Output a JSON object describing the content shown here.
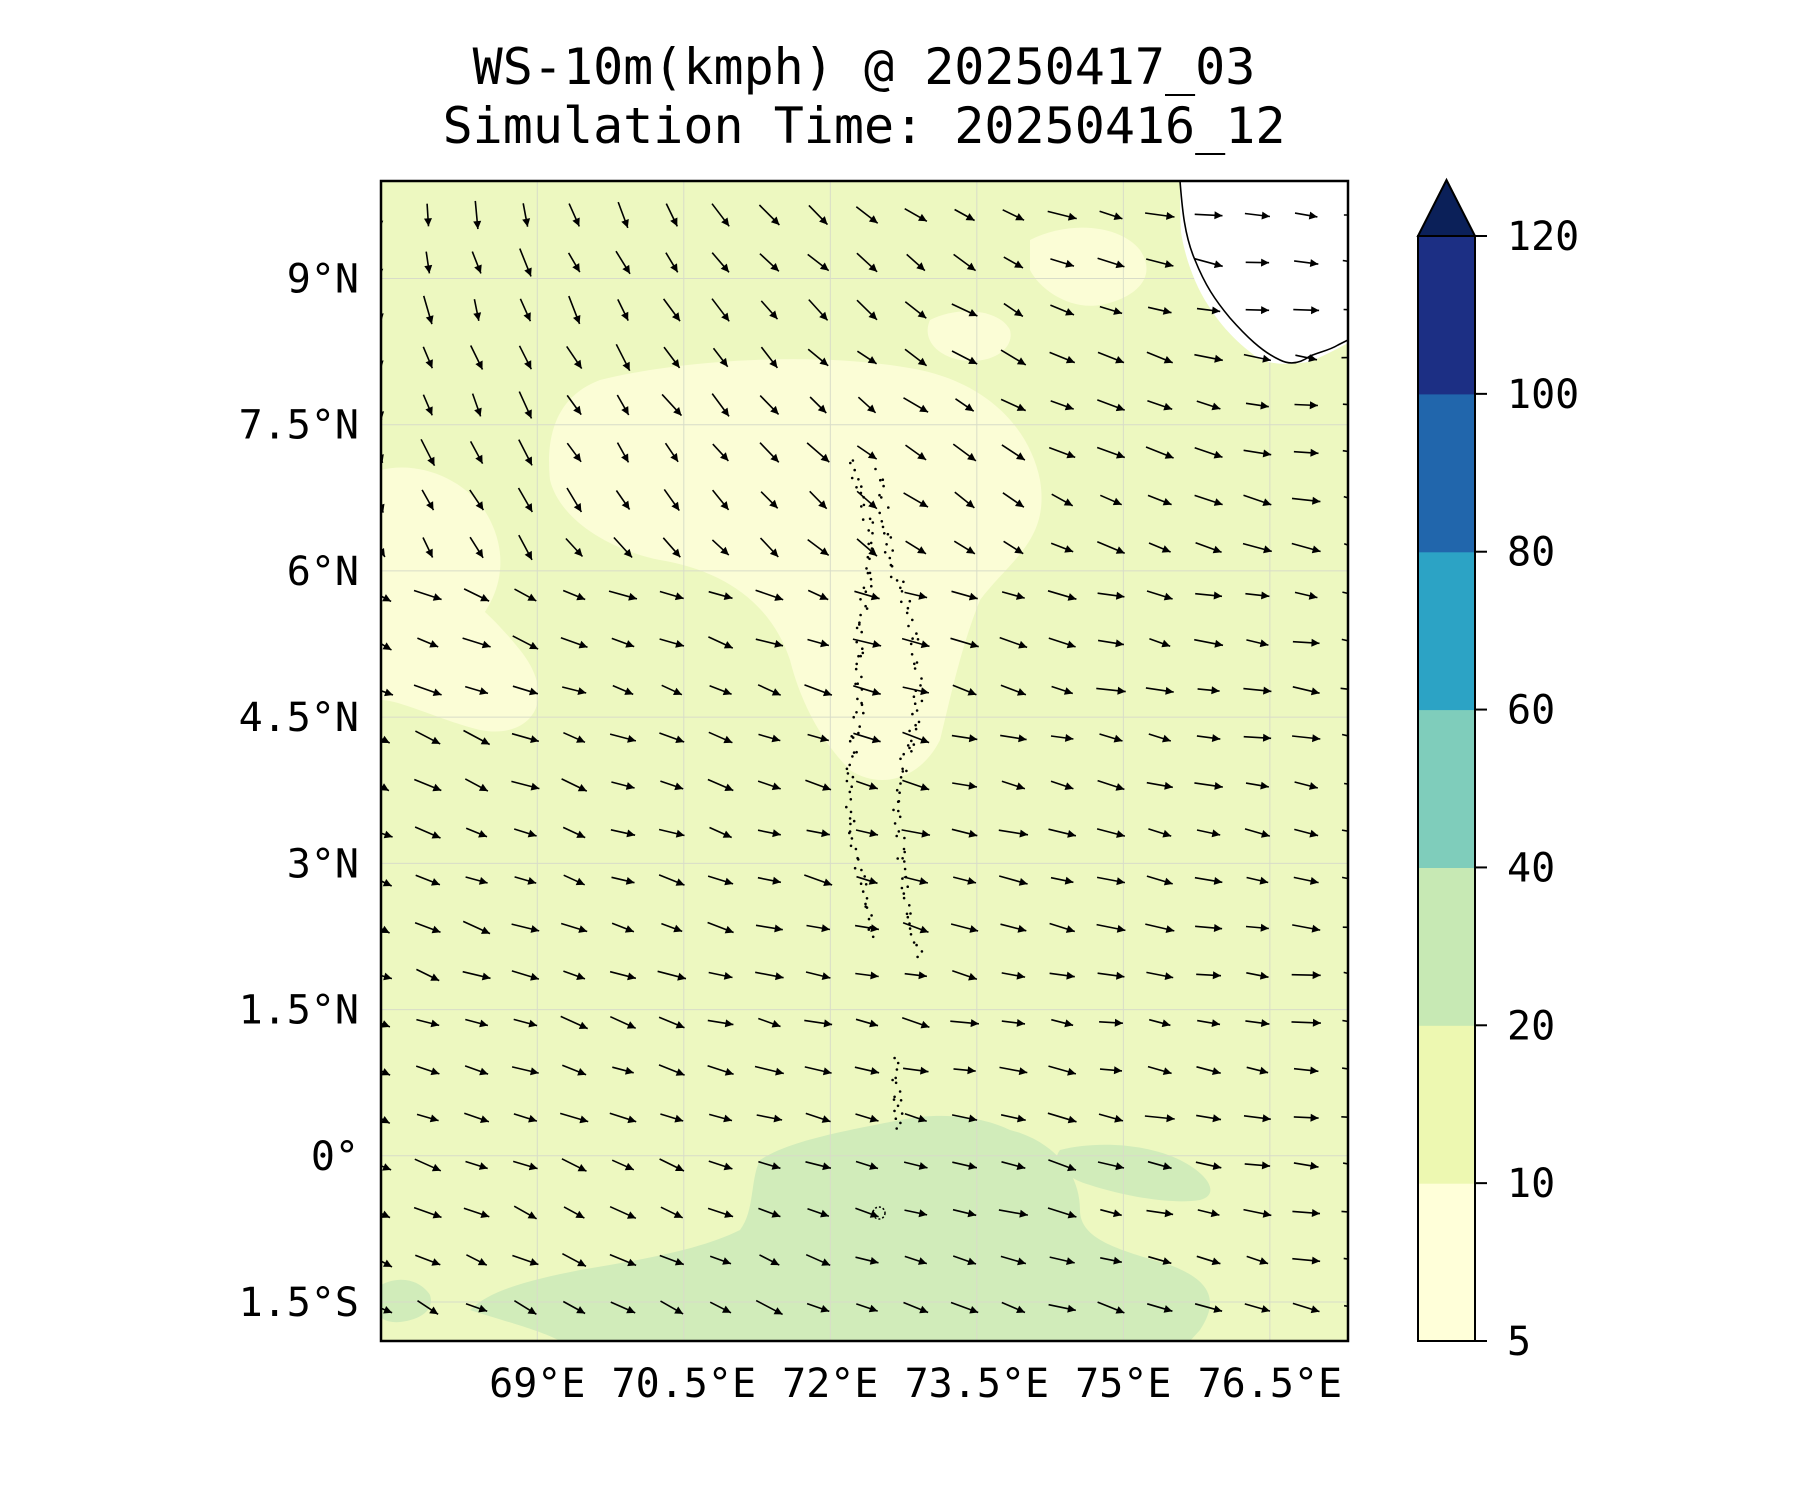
{
  "title": {
    "line1": "WS-10m(kmph) @ 20250417_03",
    "line2": "Simulation Time: 20250416_12"
  },
  "map": {
    "variable": "10 m wind speed",
    "units": "kmph",
    "lon_range": [
      67.4,
      77.3
    ],
    "lat_range": [
      -1.9,
      10.0
    ],
    "x_ticks": [
      {
        "value": 69.0,
        "label": "69°E"
      },
      {
        "value": 70.5,
        "label": "70.5°E"
      },
      {
        "value": 72.0,
        "label": "72°E"
      },
      {
        "value": 73.5,
        "label": "73.5°E"
      },
      {
        "value": 75.0,
        "label": "75°E"
      },
      {
        "value": 76.5,
        "label": "76.5°E"
      }
    ],
    "y_ticks": [
      {
        "value": 9.0,
        "label": "9°N"
      },
      {
        "value": 7.5,
        "label": "7.5°N"
      },
      {
        "value": 6.0,
        "label": "6°N"
      },
      {
        "value": 4.5,
        "label": "4.5°N"
      },
      {
        "value": 3.0,
        "label": "3°N"
      },
      {
        "value": 1.5,
        "label": "1.5°N"
      },
      {
        "value": 0.0,
        "label": "0°"
      },
      {
        "value": -1.5,
        "label": "1.5°S"
      }
    ],
    "background_fill": "#edf8c0",
    "light_fill": "#fbfdd6",
    "strong_fill": "#d1ecba"
  },
  "colorbar": {
    "levels": [
      5,
      10,
      20,
      40,
      60,
      80,
      100,
      120
    ],
    "colors": [
      "#ffffd9",
      "#edf8b1",
      "#c7e9b4",
      "#7fcdbb",
      "#2ca3c5",
      "#2166ac",
      "#1c2f84"
    ],
    "extend_color": "#0b2059",
    "extend": "max",
    "tick_labels": [
      "5",
      "10",
      "20",
      "40",
      "60",
      "80",
      "100",
      "120"
    ]
  },
  "colors": {
    "arrow": "#000000",
    "coastline": "#000000",
    "gridline": "#d8dcc8"
  }
}
